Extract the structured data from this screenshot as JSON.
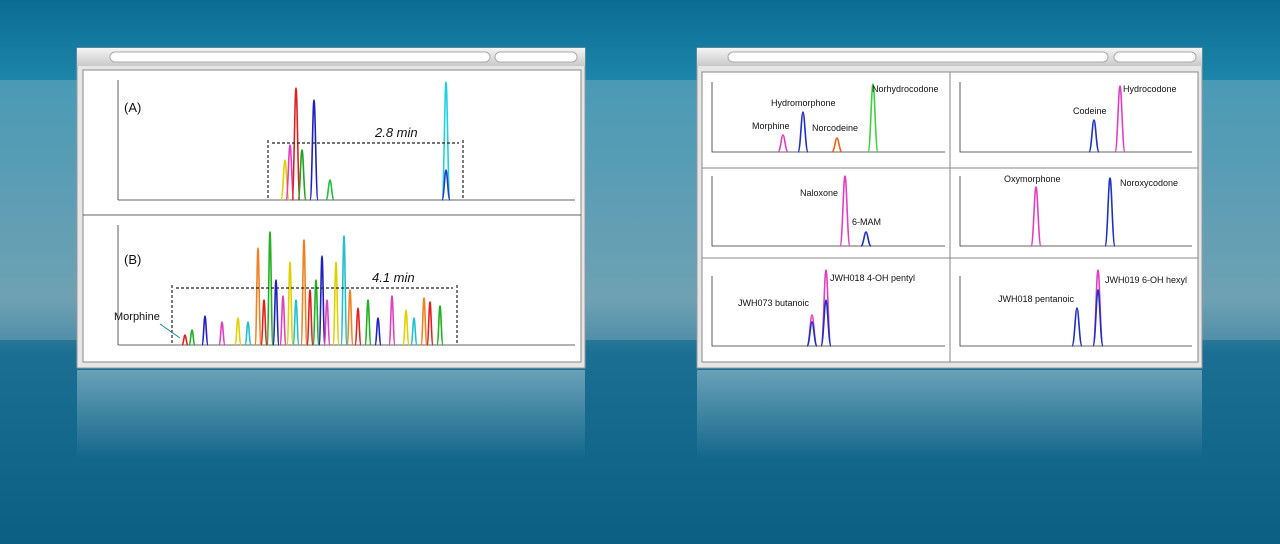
{
  "left_window": {
    "panel_a": {
      "label": "(A)",
      "span": "2.8 min"
    },
    "panel_b": {
      "label": "(B)",
      "span": "4.1 min",
      "annotation": "Morphine"
    }
  },
  "right_window": {
    "panels": [
      {
        "labels": [
          "Morphine",
          "Hydromorphone",
          "Norcodeine",
          "Norhydrocodone"
        ]
      },
      {
        "labels": [
          "Codeine",
          "Hydrocodone"
        ]
      },
      {
        "labels": [
          "Naloxone",
          "6-MAM"
        ]
      },
      {
        "labels": [
          "Oxymorphone",
          "Noroxycodone"
        ]
      },
      {
        "labels": [
          "JWH073 butanoic",
          "JWH018 4-OH pentyl"
        ]
      },
      {
        "labels": [
          "JWH018 pentanoic",
          "JWH019 6-OH hexyl"
        ]
      }
    ]
  }
}
